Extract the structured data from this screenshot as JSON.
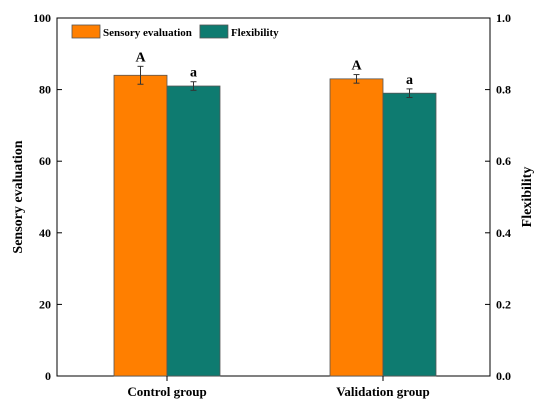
{
  "chart_data": {
    "type": "bar",
    "categories": [
      "Control group",
      "Validation group"
    ],
    "series": [
      {
        "name": "Sensory evaluation",
        "axis": "left",
        "values": [
          84,
          83
        ],
        "errors": [
          2.5,
          1.2
        ],
        "labels": [
          "A",
          "A"
        ],
        "color": "#FF7F00"
      },
      {
        "name": "Flexibility",
        "axis": "right",
        "values": [
          0.81,
          0.79
        ],
        "errors": [
          0.012,
          0.012
        ],
        "labels": [
          "a",
          "a"
        ],
        "color": "#0E7B70"
      }
    ],
    "ylabel": "Sensory evaluation",
    "ylim": [
      0,
      100
    ],
    "yticks": [
      "0",
      "20",
      "40",
      "60",
      "80",
      "100"
    ],
    "y2label": "Flexibility",
    "y2lim": [
      0,
      1.0
    ],
    "y2ticks": [
      "0.0",
      "0.2",
      "0.4",
      "0.6",
      "0.8",
      "1.0"
    ],
    "legend_position": "top-left",
    "grid": false
  }
}
